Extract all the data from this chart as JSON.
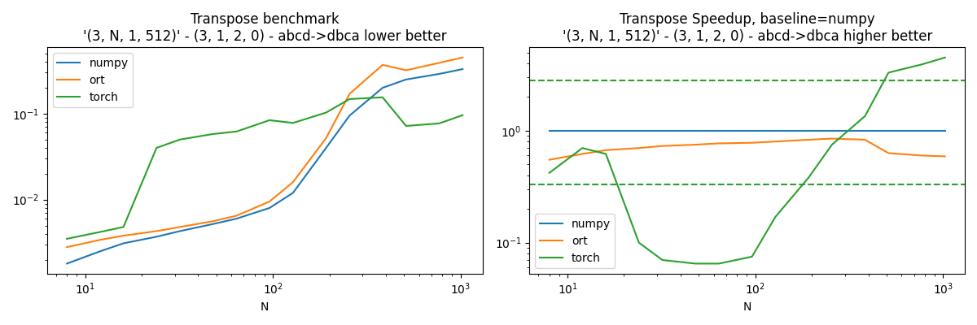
{
  "title1": "Transpose benchmark\n'(3, N, 1, 512)' - (3, 1, 2, 0) - abcd->dbca lower better",
  "title2": "Transpose Speedup, baseline=numpy\n'(3, N, 1, 512)' - (3, 1, 2, 0) - abcd->dbca higher better",
  "xlabel": "N",
  "N_values": [
    8,
    12,
    16,
    24,
    32,
    48,
    64,
    96,
    128,
    192,
    256,
    384,
    512,
    768,
    1024
  ],
  "numpy_bench": [
    0.0018,
    0.0025,
    0.0031,
    0.0037,
    0.0043,
    0.0052,
    0.006,
    0.008,
    0.012,
    0.04,
    0.095,
    0.2,
    0.25,
    0.29,
    0.33
  ],
  "ort_bench": [
    0.0028,
    0.0034,
    0.0038,
    0.0043,
    0.0048,
    0.0056,
    0.0065,
    0.0095,
    0.016,
    0.052,
    0.17,
    0.37,
    0.32,
    0.39,
    0.45
  ],
  "torch_bench": [
    0.0035,
    0.0042,
    0.0048,
    0.04,
    0.05,
    0.058,
    0.062,
    0.084,
    0.078,
    0.103,
    0.148,
    0.155,
    0.072,
    0.077,
    0.096
  ],
  "numpy_speedup": [
    1.0,
    1.0,
    1.0,
    1.0,
    1.0,
    1.0,
    1.0,
    1.0,
    1.0,
    1.0,
    1.0,
    1.0,
    1.0,
    1.0,
    1.0
  ],
  "ort_speedup": [
    0.55,
    0.62,
    0.67,
    0.7,
    0.73,
    0.75,
    0.77,
    0.78,
    0.8,
    0.83,
    0.85,
    0.83,
    0.63,
    0.6,
    0.59
  ],
  "torch_speedup": [
    0.42,
    0.7,
    0.62,
    0.1,
    0.07,
    0.065,
    0.065,
    0.075,
    0.17,
    0.38,
    0.75,
    1.35,
    3.3,
    3.9,
    4.5
  ],
  "torch_dashed_high": 2.8,
  "torch_dashed_low": 0.33,
  "color_numpy": "#1f77b4",
  "color_ort": "#ff7f0e",
  "color_torch": "#2ca02c",
  "figsize": [
    12,
    4
  ],
  "dpi": 100
}
